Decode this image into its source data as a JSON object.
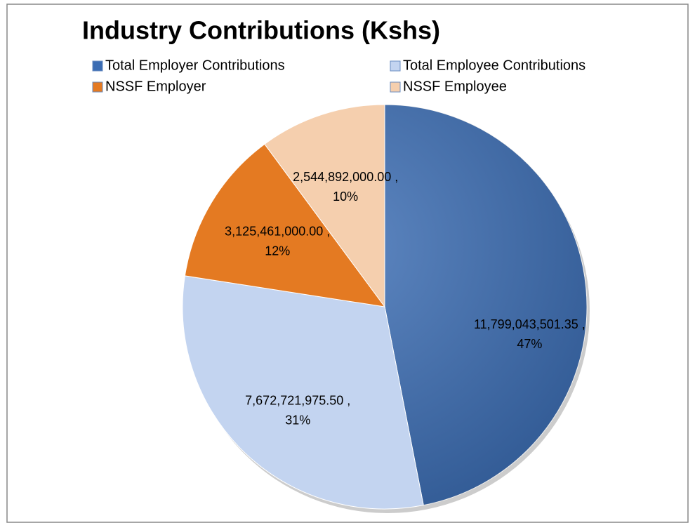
{
  "chart_data": {
    "type": "pie",
    "title": "Industry Contributions (Kshs)",
    "categories": [
      "Total Employer Contributions",
      "Total Employee Contributions",
      "NSSF Employer",
      "NSSF Employee"
    ],
    "values": [
      11799043501.35,
      7672721975.5,
      3125461000.0,
      2544892000.0
    ],
    "value_labels": [
      "11,799,043,501.35 ,",
      "7,672,721,975.50 ,",
      "3,125,461,000.00 ,",
      "2,544,892,000.00 ,"
    ],
    "percent_labels": [
      "47%",
      "31%",
      "12%",
      "10%"
    ],
    "colors": [
      "#3a6cb3",
      "#c3d4f0",
      "#e47a22",
      "#f5cfae"
    ],
    "legend": "top"
  }
}
